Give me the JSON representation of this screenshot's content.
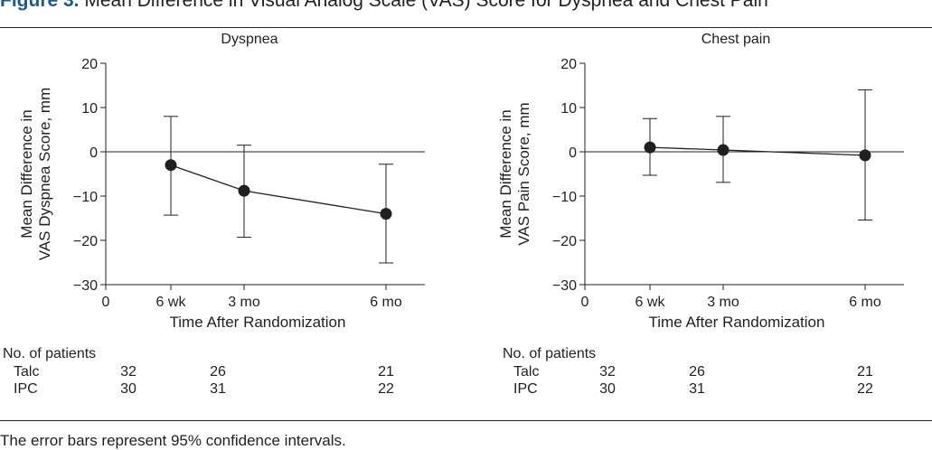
{
  "figure": {
    "label": "Figure 3.",
    "caption": "Mean Difference in Visual Analog Scale (VAS) Score for Dyspnea and Chest Pain",
    "footnote": "The error bars represent 95% confidence intervals."
  },
  "colors": {
    "ink": "#231f20",
    "label_blue": "#1f5a8a"
  },
  "chart_data": [
    {
      "type": "line",
      "title": "Dyspnea",
      "xlabel": "Time After Randomization",
      "ylabel": [
        "Mean Difference in",
        "VAS Dyspnea Score, mm"
      ],
      "xlim": [
        0,
        6
      ],
      "ylim": [
        -30,
        20
      ],
      "x_ticks": [
        0,
        1.5,
        3,
        6
      ],
      "x_tick_labels": [
        "0",
        "6 wk",
        "3 mo",
        "6 mo"
      ],
      "y_ticks": [
        20,
        10,
        0,
        -10,
        -20,
        -30
      ],
      "y_tick_labels": [
        "20",
        "10",
        "0",
        "−10",
        "−20",
        "−30"
      ],
      "reference_line": 0,
      "points": [
        {
          "x": 1.5,
          "label": "6 wk",
          "y": -3,
          "ci": [
            -14.3,
            8
          ]
        },
        {
          "x": 3,
          "label": "3 mo",
          "y": -8.8,
          "ci": [
            -19.3,
            1.5
          ]
        },
        {
          "x": 6,
          "label": "6 mo",
          "y": -14,
          "ci": [
            -25.1,
            -2.8
          ]
        }
      ],
      "patients": {
        "heading": "No. of patients",
        "rows": [
          {
            "name": "Talc",
            "counts": [
              "32",
              "26",
              "21"
            ]
          },
          {
            "name": "IPC",
            "counts": [
              "30",
              "31",
              "22"
            ]
          }
        ]
      }
    },
    {
      "type": "line",
      "title": "Chest pain",
      "xlabel": "Time After Randomization",
      "ylabel": [
        "Mean Difference in",
        "VAS Pain Score, mm"
      ],
      "xlim": [
        0,
        6
      ],
      "ylim": [
        -30,
        20
      ],
      "x_ticks": [
        0,
        1.5,
        3,
        6
      ],
      "x_tick_labels": [
        "0",
        "6 wk",
        "3 mo",
        "6 mo"
      ],
      "y_ticks": [
        20,
        10,
        0,
        -10,
        -20,
        -30
      ],
      "y_tick_labels": [
        "20",
        "10",
        "0",
        "−10",
        "−20",
        "−30"
      ],
      "reference_line": 0,
      "points": [
        {
          "x": 1.5,
          "label": "6 wk",
          "y": 1,
          "ci": [
            -5.3,
            7.5
          ]
        },
        {
          "x": 3,
          "label": "3 mo",
          "y": 0.4,
          "ci": [
            -6.9,
            8
          ]
        },
        {
          "x": 6,
          "label": "6 mo",
          "y": -0.8,
          "ci": [
            -15.4,
            14
          ]
        }
      ],
      "patients": {
        "heading": "No. of patients",
        "rows": [
          {
            "name": "Talc",
            "counts": [
              "32",
              "26",
              "21"
            ]
          },
          {
            "name": "IPC",
            "counts": [
              "30",
              "31",
              "22"
            ]
          }
        ]
      }
    }
  ]
}
